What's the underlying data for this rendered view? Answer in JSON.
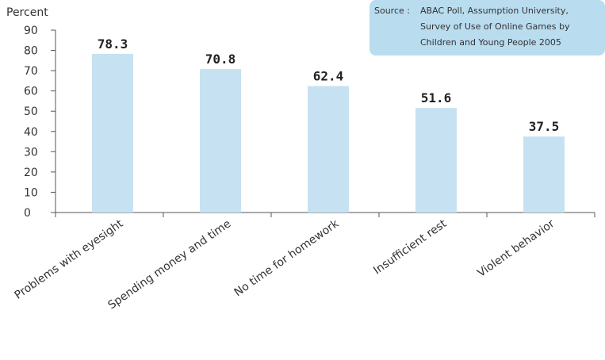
{
  "chart_data": {
    "type": "bar",
    "y_label": "Percent",
    "source_label": "Source :",
    "source_lines": [
      "ABAC Poll, Assumption University,",
      "Survey of Use of Online Games by",
      "Children and Young People 2005"
    ],
    "categories": [
      "Problems with eyesight",
      "Spending money and time",
      "No time for homework",
      "Insufficient rest",
      "Violent behavior"
    ],
    "values": [
      78.3,
      70.8,
      62.4,
      51.6,
      37.5
    ],
    "color": "#c6e2f2",
    "ylim": [
      0,
      90
    ],
    "yticks": [
      0,
      10,
      20,
      30,
      40,
      50,
      60,
      70,
      80,
      90
    ]
  }
}
